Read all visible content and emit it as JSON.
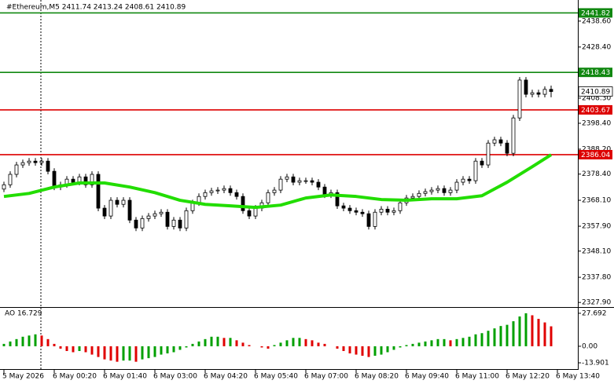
{
  "chart_data": [
    {
      "type": "candlestick",
      "title": "#Ethereum,M5  2411.74 2413.24 2408.61 2410.89",
      "up_color": "#ffffff",
      "down_color": "#000000",
      "xlim": [
        -0.625,
        91.25
      ],
      "xticks": [
        {
          "value": 0,
          "label": "5 May 2026"
        },
        {
          "value": 8,
          "label": "6 May 00:20"
        },
        {
          "value": 16,
          "label": "6 May 01:40"
        },
        {
          "value": 24,
          "label": "6 May 03:00"
        },
        {
          "value": 32,
          "label": "6 May 04:20"
        },
        {
          "value": 40,
          "label": "6 May 05:40"
        },
        {
          "value": 48,
          "label": "6 May 07:00"
        },
        {
          "value": 56,
          "label": "6 May 08:20"
        },
        {
          "value": 64,
          "label": "6 May 09:40"
        },
        {
          "value": 72,
          "label": "6 May 11:00"
        },
        {
          "value": 80,
          "label": "6 May 12:20"
        },
        {
          "value": 88,
          "label": "6 May 13:40"
        }
      ],
      "ylim": [
        2326.4,
        2446.9
      ],
      "yticks": [
        {
          "value": 2438.6,
          "label": "2438.60"
        },
        {
          "value": 2428.4,
          "label": "2428.40"
        },
        {
          "value": 2418.2,
          "label": "2418.20"
        },
        {
          "value": 2408.3,
          "label": "2408.30"
        },
        {
          "value": 2398.4,
          "label": "2398.40"
        },
        {
          "value": 2388.2,
          "label": "2388.20"
        },
        {
          "value": 2378.4,
          "label": "2378.40"
        },
        {
          "value": 2368.1,
          "label": "2368.10"
        },
        {
          "value": 2357.9,
          "label": "2357.90"
        },
        {
          "value": 2348.1,
          "label": "2348.10"
        },
        {
          "value": 2337.8,
          "label": "2337.80"
        },
        {
          "value": 2327.9,
          "label": "2327.90"
        }
      ],
      "open": [
        2372.5,
        2374.2,
        2378.3,
        2382.0,
        2382.9,
        2383.5,
        2382.9,
        2383.5,
        2379.5,
        2373.3,
        2374.2,
        2376.4,
        2375.2,
        2377.3,
        2374.2,
        2378.3,
        2365.0,
        2361.9,
        2368.1,
        2366.5,
        2368.1,
        2360.3,
        2357.2,
        2360.9,
        2361.9,
        2362.8,
        2363.4,
        2357.8,
        2360.3,
        2357.2,
        2364.0,
        2367.1,
        2369.6,
        2371.1,
        2371.8,
        2372.1,
        2372.7,
        2371.1,
        2369.6,
        2364.0,
        2361.9,
        2365.0,
        2367.1,
        2371.1,
        2372.1,
        2376.4,
        2377.3,
        2375.2,
        2375.8,
        2375.8,
        2375.2,
        2373.3,
        2370.2,
        2371.1,
        2365.9,
        2365.0,
        2364.0,
        2363.4,
        2362.8,
        2357.8,
        2363.4,
        2364.6,
        2363.4,
        2364.0,
        2367.1,
        2369.0,
        2369.6,
        2370.8,
        2371.5,
        2372.1,
        2372.7,
        2371.1,
        2372.1,
        2375.2,
        2376.4,
        2375.8,
        2383.5,
        2382.0,
        2390.6,
        2391.9,
        2390.6,
        2386.6,
        2400.5,
        2415.4,
        2409.8,
        2410.4,
        2409.8,
        2411.74
      ],
      "high": [
        2375.4,
        2379.5,
        2383.2,
        2384.1,
        2384.7,
        2384.7,
        2384.7,
        2384.7,
        2380.7,
        2375.4,
        2377.6,
        2377.6,
        2378.5,
        2378.5,
        2379.5,
        2379.5,
        2366.2,
        2369.3,
        2369.3,
        2369.3,
        2369.3,
        2361.5,
        2362.1,
        2363.1,
        2364.0,
        2364.6,
        2364.6,
        2361.5,
        2361.5,
        2365.2,
        2368.3,
        2370.8,
        2372.3,
        2373.0,
        2373.3,
        2373.9,
        2373.9,
        2372.3,
        2370.8,
        2365.2,
        2366.2,
        2368.3,
        2372.3,
        2373.3,
        2377.6,
        2378.5,
        2378.5,
        2377.0,
        2377.0,
        2377.0,
        2376.4,
        2374.5,
        2372.3,
        2372.3,
        2367.1,
        2366.2,
        2365.2,
        2364.6,
        2364.0,
        2364.6,
        2365.8,
        2365.8,
        2365.2,
        2368.3,
        2370.2,
        2370.8,
        2372.0,
        2372.7,
        2373.3,
        2373.9,
        2373.9,
        2373.3,
        2376.4,
        2377.6,
        2377.6,
        2384.7,
        2384.7,
        2391.8,
        2393.1,
        2393.1,
        2391.8,
        2401.7,
        2416.6,
        2416.6,
        2411.6,
        2411.6,
        2412.9,
        2413.24
      ],
      "low": [
        2371.3,
        2373.0,
        2377.1,
        2380.8,
        2381.7,
        2381.7,
        2381.7,
        2378.3,
        2372.1,
        2372.1,
        2373.0,
        2374.0,
        2374.0,
        2373.0,
        2373.0,
        2363.8,
        2360.7,
        2360.7,
        2365.3,
        2365.3,
        2359.1,
        2356.0,
        2356.0,
        2359.7,
        2360.7,
        2361.6,
        2356.6,
        2356.6,
        2356.0,
        2356.0,
        2362.8,
        2365.9,
        2368.4,
        2369.9,
        2370.6,
        2370.9,
        2369.9,
        2368.4,
        2362.8,
        2360.7,
        2360.7,
        2363.8,
        2365.9,
        2369.9,
        2370.9,
        2375.2,
        2374.0,
        2374.0,
        2374.6,
        2374.0,
        2372.1,
        2369.0,
        2369.0,
        2364.7,
        2363.8,
        2362.8,
        2362.2,
        2361.6,
        2356.6,
        2356.6,
        2362.2,
        2362.2,
        2362.2,
        2362.8,
        2365.9,
        2367.8,
        2368.4,
        2369.6,
        2370.3,
        2370.9,
        2369.9,
        2369.9,
        2370.9,
        2374.0,
        2374.6,
        2374.6,
        2380.8,
        2380.8,
        2389.4,
        2389.4,
        2385.4,
        2385.4,
        2399.3,
        2408.6,
        2408.6,
        2408.6,
        2408.6,
        2408.61
      ],
      "close": [
        2374.2,
        2378.3,
        2382.0,
        2382.9,
        2383.5,
        2382.9,
        2383.5,
        2379.5,
        2373.3,
        2374.2,
        2376.4,
        2375.2,
        2377.3,
        2374.2,
        2378.3,
        2365.0,
        2361.9,
        2368.1,
        2366.5,
        2368.1,
        2360.3,
        2357.2,
        2360.9,
        2361.9,
        2362.8,
        2363.4,
        2357.8,
        2360.3,
        2357.2,
        2364.0,
        2367.1,
        2369.6,
        2371.1,
        2371.8,
        2372.1,
        2372.7,
        2371.1,
        2369.6,
        2364.0,
        2361.9,
        2365.0,
        2367.1,
        2371.1,
        2372.1,
        2376.4,
        2377.3,
        2375.2,
        2375.8,
        2375.8,
        2375.2,
        2373.3,
        2370.2,
        2371.1,
        2365.9,
        2365.0,
        2364.0,
        2363.4,
        2362.8,
        2357.8,
        2363.4,
        2364.6,
        2363.4,
        2364.0,
        2367.1,
        2369.0,
        2369.6,
        2370.8,
        2371.5,
        2372.1,
        2372.7,
        2371.1,
        2372.1,
        2375.2,
        2376.4,
        2375.8,
        2383.5,
        2382.0,
        2390.6,
        2391.9,
        2390.6,
        2386.6,
        2400.5,
        2415.4,
        2409.8,
        2410.4,
        2409.8,
        2411.74,
        2410.89
      ],
      "series": [
        {
          "color": "#22dd00",
          "x": [
            0,
            4,
            8,
            12,
            16,
            20,
            24,
            28,
            32,
            36,
            40,
            44,
            48,
            52,
            56,
            60,
            64,
            68,
            72,
            76,
            80,
            84,
            87
          ],
          "values": [
            2369.6,
            2370.8,
            2373.3,
            2374.9,
            2374.9,
            2373.3,
            2371.1,
            2368.1,
            2366.5,
            2365.9,
            2365.3,
            2366.2,
            2369.0,
            2370.2,
            2369.6,
            2368.4,
            2368.1,
            2368.7,
            2368.7,
            2369.9,
            2375.2,
            2381.3,
            2386.0
          ]
        }
      ],
      "hlines": [
        {
          "value": 2441.82,
          "color": "#118811"
        },
        {
          "value": 2418.43,
          "color": "#118811"
        },
        {
          "value": 2403.67,
          "color": "#dd0000"
        },
        {
          "value": 2386.04,
          "color": "#dd0000"
        }
      ],
      "last_price": 2410.89
    },
    {
      "type": "bar",
      "title": "AO 16.729",
      "up_color": "#00a000",
      "down_color": "#e00000",
      "ylim": [
        -18.5,
        31.6
      ],
      "yticks": [
        27.692,
        {
          "value": 0,
          "label": "0.00"
        },
        -13.901
      ],
      "values": [
        2,
        4,
        6,
        8,
        9,
        10,
        9,
        6,
        2,
        -2,
        -4,
        -5,
        -4,
        -5,
        -7,
        -9,
        -11,
        -12,
        -13,
        -12,
        -12,
        -13,
        -11,
        -10,
        -9,
        -7,
        -6,
        -5,
        -3,
        -1,
        2,
        4,
        6,
        8,
        8,
        7,
        7,
        5,
        3,
        1,
        0,
        -1,
        -2,
        1,
        3,
        5,
        7,
        7,
        6,
        5,
        3,
        2,
        0,
        -2,
        -4,
        -6,
        -7,
        -8,
        -9,
        -8,
        -7,
        -5,
        -3,
        -1,
        1,
        2,
        3,
        4,
        5,
        6,
        6,
        5,
        6,
        7,
        8,
        10,
        11,
        13,
        15,
        17,
        18,
        21,
        25,
        27.7,
        26,
        23,
        20,
        16.729
      ]
    }
  ]
}
